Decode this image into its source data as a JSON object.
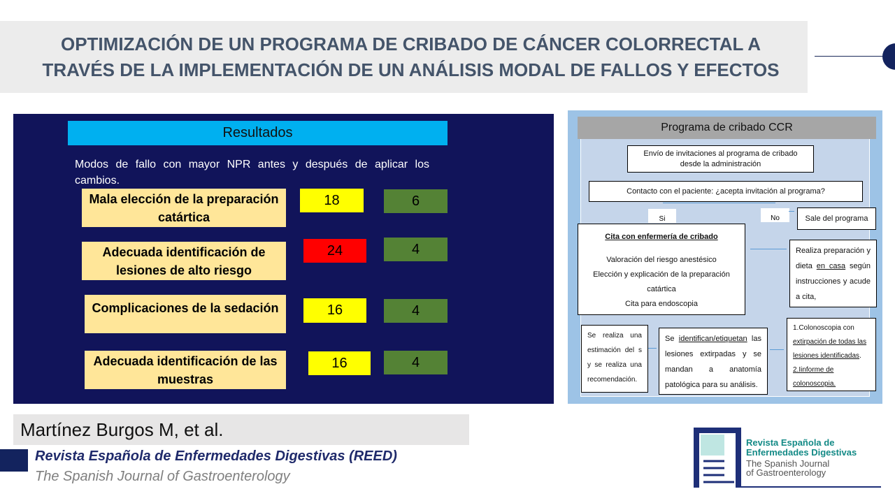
{
  "title": {
    "line1": "OPTIMIZACIÓN DE UN PROGRAMA DE CRIBADO DE CÁNCER COLORRECTAL A",
    "line2": "TRAVÉS DE LA IMPLEMENTACIÓN DE UN ANÁLISIS MODAL DE FALLOS Y EFECTOS"
  },
  "results": {
    "heading": "Resultados",
    "description": "Modos de fallo con mayor NPR antes y después de aplicar los cambios.",
    "rows": [
      {
        "label": "Mala elección de la preparación catártica",
        "before": "18",
        "after": "6",
        "before_color": "#ffff00"
      },
      {
        "label": "Adecuada identificación de lesiones de alto riesgo",
        "before": "24",
        "after": "4",
        "before_color": "#ff0000"
      },
      {
        "label": "Complicaciones de la sedación",
        "before": "16",
        "after": "4",
        "before_color": "#ffff00"
      },
      {
        "label": "Adecuada identificación de las muestras",
        "before": "16",
        "after": "4",
        "before_color": "#ffff00"
      }
    ]
  },
  "flow": {
    "heading": "Programa de cribado CCR",
    "invite": "Envío de invitaciones al programa de cribado desde la administración",
    "contact": "Contacto con el paciente: ¿acepta invitación al programa?",
    "yes": "Si",
    "no": "No",
    "exit": "Sale del programa",
    "nurse_title": "Cita con enfermería de cribado",
    "nurse_1": "Valoración del riesgo anestésico",
    "nurse_2": "Elección y explicación de la preparación catártica",
    "nurse_3": "Cita para endoscopia",
    "prep_1": "Realiza preparación y dieta ",
    "prep_u": "en casa",
    "prep_2": " según instrucciones y acude a cita,",
    "colono_1": "1.Colonoscopia con ",
    "colono_u1": "extirpación de todas las lesiones identificadas",
    "colono_2": ".",
    "colono_u2": "2.Iinforme de colonoscopia.",
    "label_1": "Se ",
    "label_u": "identifican/etiquetan",
    "label_2": " las lesiones extirpadas y se mandan a anatomía patológica para su análisis.",
    "estimate": "Se realiza una estimación del s y se realiza una recomendación."
  },
  "footer": {
    "author": "Martínez Burgos M, et al.",
    "journal": "Revista Española de Enfermedades Digestivas (REED)",
    "journal_en": "The Spanish Journal of Gastroenterology",
    "logo_l1": "Revista Española de Enfermedades Digestivas",
    "logo_l2": "The Spanish Journal of Gastroenterology"
  },
  "colors": {
    "navy": "#11145a",
    "cyan": "#00b0f0",
    "green": "#548235"
  }
}
